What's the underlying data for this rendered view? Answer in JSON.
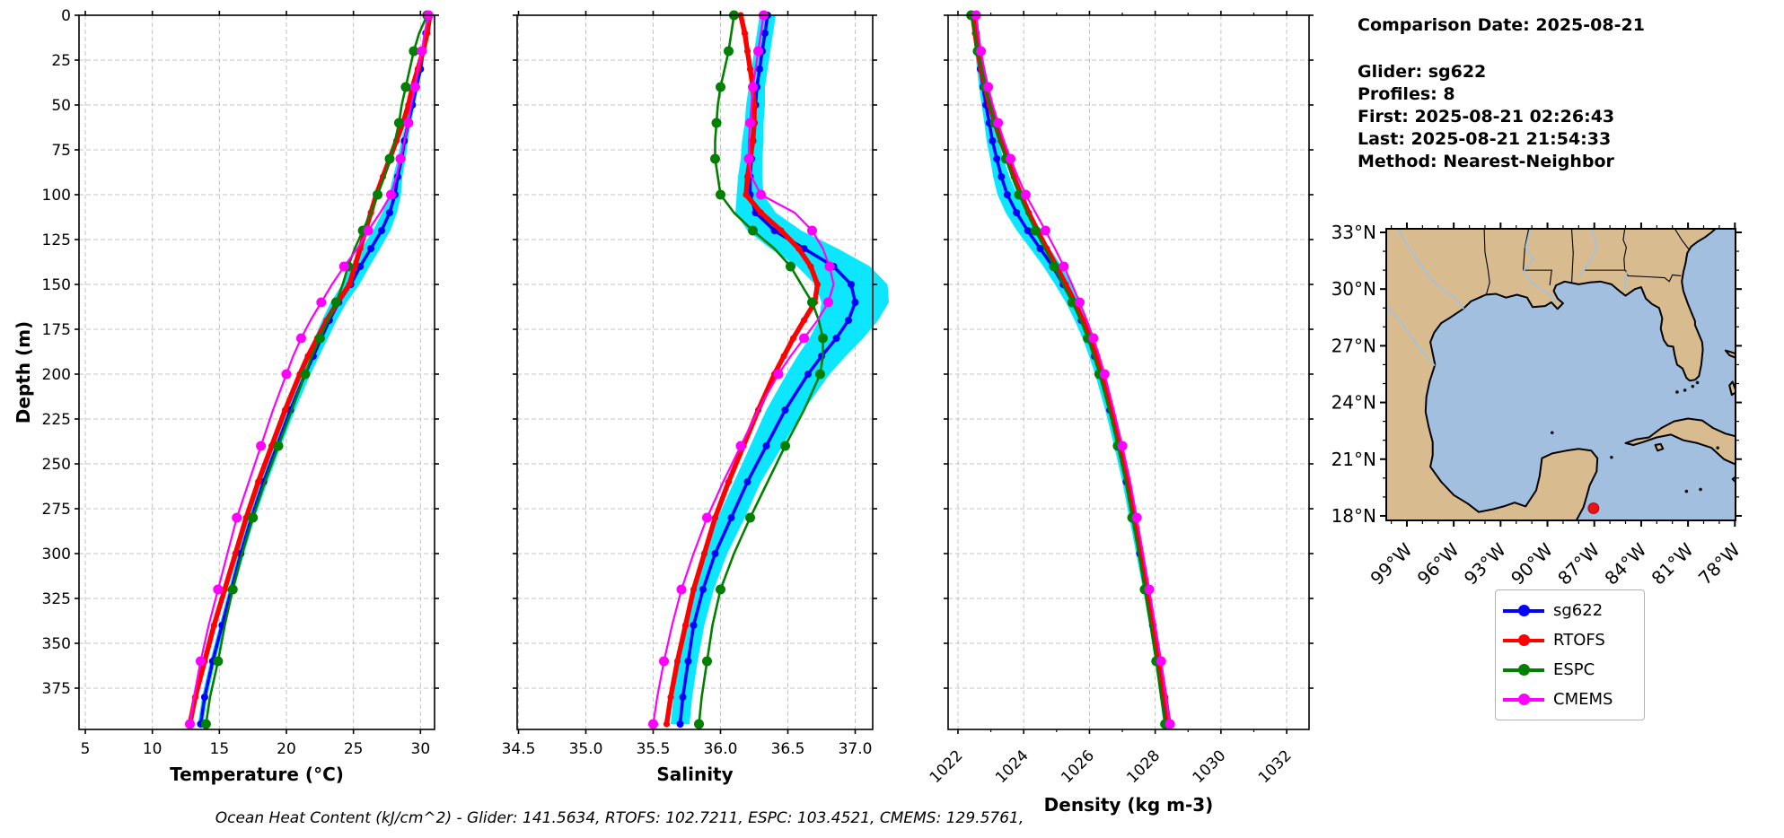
{
  "info_panel": {
    "comparison_date": "Comparison Date: 2025-08-21",
    "glider": "Glider: sg622",
    "profiles": "Profiles: 8",
    "first": "First: 2025-08-21 02:26:43",
    "last": "Last: 2025-08-21 21:54:33",
    "method": "Method: Nearest-Neighbor"
  },
  "footer": {
    "ohc": "Ocean Heat Content (kJ/cm^2) - Glider: 141.5634,  RTOFS: 102.7211,  ESPC: 103.4521,  CMEMS: 129.5761,"
  },
  "legend": {
    "items": [
      {
        "label": "sg622",
        "color": "#0000ff"
      },
      {
        "label": "RTOFS",
        "color": "#ff0000"
      },
      {
        "label": "ESPC",
        "color": "#008000"
      },
      {
        "label": "CMEMS",
        "color": "#ff00ff"
      }
    ]
  },
  "axis_labels": {
    "depth": "Depth (m)",
    "temperature": "Temperature (°C)",
    "salinity": "Salinity",
    "density": "Density (kg m-3)"
  },
  "map": {
    "land_color": "#d8bc90",
    "ocean_color": "#a3bfdf",
    "river_color": "#9dc3e6",
    "lat_labels": [
      "33°N",
      "30°N",
      "27°N",
      "24°N",
      "21°N",
      "18°N"
    ],
    "lat_values": [
      33,
      30,
      27,
      24,
      21,
      18
    ],
    "lon_labels": [
      "99°W",
      "96°W",
      "93°W",
      "90°W",
      "87°W",
      "84°W",
      "81°W",
      "78°W"
    ],
    "lon_values": [
      -99,
      -96,
      -93,
      -90,
      -87,
      -84,
      -81,
      -78
    ],
    "extent": {
      "lon_min": -100.32,
      "lon_max": -77.96,
      "lat_min": 17.76,
      "lat_max": 33.19
    },
    "glider_marker": {
      "lon": -87.05,
      "lat": 18.4,
      "color": "#ee1111"
    }
  },
  "chart_data": [
    {
      "type": "line",
      "name": "temperature",
      "xlabel": "Temperature (°C)",
      "ylabel": "Depth (m)",
      "xlim": [
        4.53,
        31.05
      ],
      "ylim": [
        0,
        398
      ],
      "grid": true,
      "xticks": [
        5,
        10,
        15,
        20,
        25,
        30
      ],
      "xtick_labels": [
        "5",
        "10",
        "15",
        "20",
        "25",
        "30"
      ],
      "xtick_rotation": 0,
      "xminor": [],
      "yticks": [
        0,
        25,
        50,
        75,
        100,
        125,
        150,
        175,
        200,
        225,
        250,
        275,
        300,
        325,
        350,
        375
      ],
      "depths": [
        0,
        10,
        20,
        30,
        40,
        50,
        60,
        70,
        80,
        90,
        100,
        110,
        120,
        130,
        140,
        150,
        160,
        170,
        180,
        190,
        200,
        220,
        240,
        260,
        280,
        300,
        320,
        340,
        360,
        380,
        395
      ],
      "envelope": {
        "name": "glider-spread",
        "color": "#00e5ff",
        "delta": [
          0.15,
          0.15,
          0.15,
          0.15,
          0.15,
          0.18,
          0.2,
          0.25,
          0.3,
          0.35,
          0.45,
          0.55,
          0.65,
          0.7,
          0.7,
          0.65,
          0.6,
          0.55,
          0.5,
          0.45,
          0.4,
          0.35,
          0.3,
          0.3,
          0.25,
          0.25,
          0.2,
          0.2,
          0.2,
          0.2,
          0.2
        ]
      },
      "series": [
        {
          "name": "sg622",
          "color": "#0000ff",
          "values": [
            30.6,
            30.4,
            30.2,
            30.0,
            29.7,
            29.4,
            29.1,
            28.8,
            28.6,
            28.3,
            28.1,
            27.7,
            27.1,
            26.3,
            25.5,
            24.8,
            23.9,
            23.2,
            22.6,
            22.0,
            21.4,
            20.3,
            19.3,
            18.3,
            17.4,
            16.6,
            15.9,
            15.2,
            14.5,
            13.9,
            13.6
          ]
        },
        {
          "name": "RTOFS",
          "color": "#ff0000",
          "values": [
            30.7,
            30.5,
            30.2,
            29.8,
            29.4,
            29.1,
            28.7,
            28.2,
            27.7,
            27.2,
            26.7,
            26.3,
            25.9,
            25.5,
            25.1,
            24.7,
            23.8,
            23.0,
            22.3,
            21.6,
            21.0,
            19.9,
            18.9,
            17.9,
            17.0,
            16.2,
            15.4,
            14.6,
            13.9,
            13.2,
            12.8
          ]
        },
        {
          "name": "ESPC",
          "color": "#008000",
          "values": [
            30.5,
            29.9,
            29.5,
            29.2,
            28.9,
            28.6,
            28.4,
            28.1,
            27.7,
            27.3,
            26.8,
            26.3,
            25.7,
            25.1,
            24.6,
            24.2,
            23.7,
            23.1,
            22.5,
            21.9,
            21.4,
            20.4,
            19.4,
            18.4,
            17.5,
            16.7,
            16.0,
            15.4,
            14.9,
            14.3,
            14.0
          ]
        },
        {
          "name": "CMEMS",
          "color": "#ff00ff",
          "values": [
            30.6,
            30.3,
            30.1,
            29.8,
            29.6,
            29.3,
            29.1,
            28.8,
            28.5,
            28.2,
            27.8,
            27.0,
            26.1,
            25.3,
            24.3,
            23.4,
            22.6,
            21.8,
            21.1,
            20.5,
            20.0,
            19.0,
            18.1,
            17.2,
            16.3,
            15.6,
            14.9,
            14.2,
            13.6,
            13.1,
            12.8
          ]
        }
      ]
    },
    {
      "type": "line",
      "name": "salinity",
      "xlabel": "Salinity",
      "ylabel": "",
      "xlim": [
        34.49,
        37.13
      ],
      "ylim": [
        0,
        398
      ],
      "grid": true,
      "xticks": [
        34.5,
        35.0,
        35.5,
        36.0,
        36.5,
        37.0
      ],
      "xtick_labels": [
        "34.5",
        "35.0",
        "35.5",
        "36.0",
        "36.5",
        "37.0"
      ],
      "xtick_rotation": 0,
      "xminor": [],
      "yticks": [
        0,
        25,
        50,
        75,
        100,
        125,
        150,
        175,
        200,
        225,
        250,
        275,
        300,
        325,
        350,
        375
      ],
      "depths": [
        0,
        10,
        20,
        30,
        40,
        50,
        60,
        70,
        80,
        90,
        100,
        110,
        120,
        130,
        140,
        150,
        160,
        170,
        180,
        190,
        200,
        220,
        240,
        260,
        280,
        300,
        320,
        340,
        360,
        380,
        395
      ],
      "envelope": {
        "name": "glider-spread",
        "color": "#00e5ff",
        "delta": [
          0.06,
          0.06,
          0.06,
          0.06,
          0.06,
          0.07,
          0.07,
          0.08,
          0.08,
          0.09,
          0.1,
          0.15,
          0.2,
          0.25,
          0.27,
          0.27,
          0.25,
          0.22,
          0.2,
          0.18,
          0.16,
          0.14,
          0.12,
          0.1,
          0.1,
          0.09,
          0.08,
          0.08,
          0.07,
          0.07,
          0.07
        ]
      },
      "series": [
        {
          "name": "sg622",
          "color": "#0000ff",
          "values": [
            36.35,
            36.33,
            36.31,
            36.29,
            36.27,
            36.26,
            36.25,
            36.24,
            36.23,
            36.22,
            36.22,
            36.26,
            36.4,
            36.62,
            36.84,
            36.97,
            37.0,
            36.95,
            36.86,
            36.75,
            36.65,
            36.48,
            36.34,
            36.2,
            36.08,
            35.96,
            35.87,
            35.8,
            35.76,
            35.72,
            35.7
          ]
        },
        {
          "name": "RTOFS",
          "color": "#ff0000",
          "values": [
            36.15,
            36.18,
            36.2,
            36.22,
            36.24,
            36.25,
            36.25,
            36.24,
            36.22,
            36.2,
            36.19,
            36.3,
            36.45,
            36.58,
            36.67,
            36.72,
            36.7,
            36.62,
            36.54,
            36.47,
            36.4,
            36.28,
            36.17,
            36.06,
            35.96,
            35.88,
            35.8,
            35.74,
            35.68,
            35.63,
            35.6
          ]
        },
        {
          "name": "ESPC",
          "color": "#008000",
          "values": [
            36.1,
            36.08,
            36.06,
            36.03,
            36.0,
            35.98,
            35.97,
            35.96,
            35.96,
            35.98,
            36.0,
            36.1,
            36.24,
            36.4,
            36.52,
            36.6,
            36.68,
            36.73,
            36.76,
            36.76,
            36.74,
            36.62,
            36.48,
            36.35,
            36.22,
            36.1,
            36.0,
            35.94,
            35.9,
            35.86,
            35.84
          ]
        },
        {
          "name": "CMEMS",
          "color": "#ff00ff",
          "values": [
            36.32,
            36.3,
            36.28,
            36.26,
            36.24,
            36.23,
            36.22,
            36.21,
            36.21,
            36.23,
            36.3,
            36.55,
            36.68,
            36.76,
            36.81,
            36.84,
            36.8,
            36.72,
            36.62,
            36.52,
            36.43,
            36.28,
            36.15,
            36.02,
            35.9,
            35.8,
            35.71,
            35.64,
            35.58,
            35.53,
            35.5
          ]
        }
      ]
    },
    {
      "type": "line",
      "name": "density",
      "xlabel": "Density (kg m-3)",
      "ylabel": "",
      "xlim": [
        1021.7,
        1032.68
      ],
      "ylim": [
        0,
        398
      ],
      "grid": true,
      "xticks": [
        1022,
        1024,
        1026,
        1028,
        1030,
        1032
      ],
      "xtick_labels": [
        "1022",
        "1024",
        "1026",
        "1028",
        "1030",
        "1032"
      ],
      "xtick_rotation": -45,
      "xminor": [
        1023,
        1025,
        1027,
        1029,
        1031
      ],
      "yticks": [
        0,
        25,
        50,
        75,
        100,
        125,
        150,
        175,
        200,
        225,
        250,
        275,
        300,
        325,
        350,
        375
      ],
      "depths": [
        0,
        10,
        20,
        30,
        40,
        50,
        60,
        70,
        80,
        90,
        100,
        110,
        120,
        130,
        140,
        150,
        160,
        170,
        180,
        190,
        200,
        220,
        240,
        260,
        280,
        300,
        320,
        340,
        360,
        380,
        395
      ],
      "envelope": {
        "name": "glider-spread",
        "color": "#00e5ff",
        "delta": [
          0.1,
          0.1,
          0.1,
          0.1,
          0.12,
          0.13,
          0.15,
          0.18,
          0.2,
          0.25,
          0.3,
          0.33,
          0.33,
          0.3,
          0.28,
          0.25,
          0.22,
          0.2,
          0.18,
          0.16,
          0.15,
          0.14,
          0.13,
          0.12,
          0.12,
          0.11,
          0.1,
          0.1,
          0.1,
          0.1,
          0.1
        ]
      },
      "series": [
        {
          "name": "sg622",
          "color": "#0000ff",
          "values": [
            1022.5,
            1022.55,
            1022.62,
            1022.68,
            1022.76,
            1022.85,
            1022.95,
            1023.05,
            1023.18,
            1023.32,
            1023.5,
            1023.78,
            1024.12,
            1024.5,
            1024.88,
            1025.2,
            1025.5,
            1025.75,
            1025.97,
            1026.15,
            1026.32,
            1026.62,
            1026.88,
            1027.12,
            1027.33,
            1027.53,
            1027.73,
            1027.92,
            1028.1,
            1028.25,
            1028.35
          ]
        },
        {
          "name": "RTOFS",
          "color": "#ff0000",
          "values": [
            1022.45,
            1022.52,
            1022.6,
            1022.7,
            1022.82,
            1022.96,
            1023.12,
            1023.3,
            1023.5,
            1023.7,
            1023.92,
            1024.15,
            1024.42,
            1024.7,
            1025.0,
            1025.28,
            1025.56,
            1025.8,
            1026.02,
            1026.2,
            1026.37,
            1026.66,
            1026.92,
            1027.16,
            1027.37,
            1027.57,
            1027.76,
            1027.95,
            1028.13,
            1028.3,
            1028.42
          ]
        },
        {
          "name": "ESPC",
          "color": "#008000",
          "values": [
            1022.4,
            1022.5,
            1022.6,
            1022.72,
            1022.84,
            1022.97,
            1023.12,
            1023.28,
            1023.46,
            1023.65,
            1023.86,
            1024.1,
            1024.36,
            1024.64,
            1024.93,
            1025.2,
            1025.48,
            1025.73,
            1025.95,
            1026.13,
            1026.3,
            1026.6,
            1026.86,
            1027.1,
            1027.3,
            1027.5,
            1027.68,
            1027.86,
            1028.03,
            1028.18,
            1028.3
          ]
        },
        {
          "name": "CMEMS",
          "color": "#ff00ff",
          "values": [
            1022.55,
            1022.62,
            1022.7,
            1022.8,
            1022.92,
            1023.06,
            1023.22,
            1023.4,
            1023.6,
            1023.82,
            1024.06,
            1024.36,
            1024.66,
            1024.95,
            1025.22,
            1025.47,
            1025.7,
            1025.92,
            1026.12,
            1026.3,
            1026.46,
            1026.74,
            1027.0,
            1027.24,
            1027.44,
            1027.63,
            1027.82,
            1028.0,
            1028.18,
            1028.33,
            1028.45
          ]
        }
      ]
    }
  ]
}
